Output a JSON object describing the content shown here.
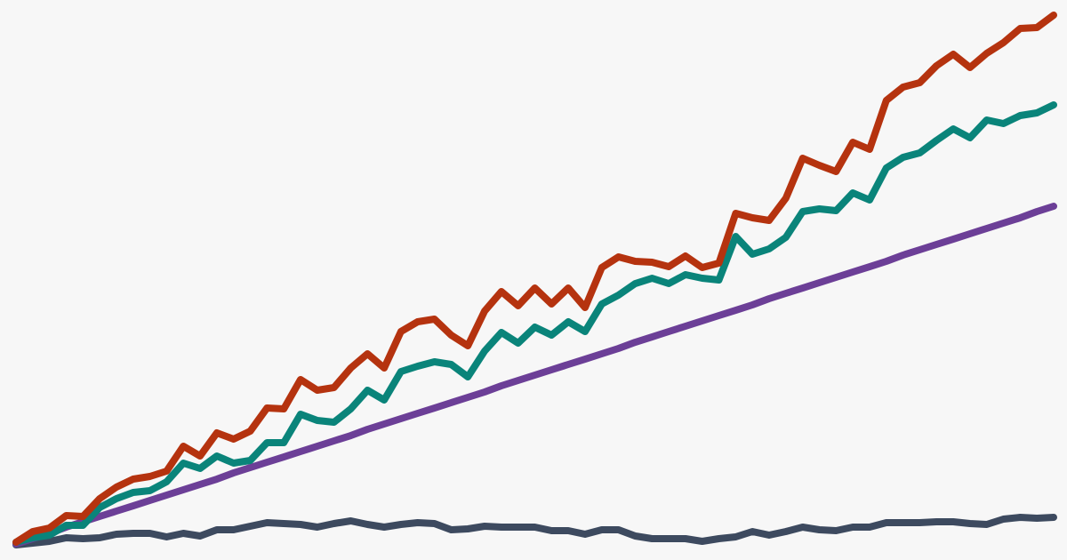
{
  "chart_data": {
    "type": "line",
    "ylim": [
      0,
      630
    ],
    "series": [
      {
        "color": "#3d4a5f",
        "values": [
          17,
          19,
          21,
          25,
          24,
          25,
          29,
          30,
          30,
          26,
          30,
          27,
          34,
          34,
          38,
          42,
          41,
          40,
          37,
          41,
          44,
          40,
          37,
          40,
          42,
          41,
          34,
          35,
          38,
          37,
          37,
          37,
          33,
          33,
          29,
          34,
          34,
          27,
          24,
          24,
          24,
          21,
          24,
          26,
          32,
          28,
          32,
          37,
          34,
          33,
          37,
          37,
          42,
          42,
          42,
          43,
          43,
          41,
          40,
          46,
          48,
          47,
          48
        ]
      },
      {
        "color": "#6c3f97",
        "values": [
          18,
          24,
          30,
          37,
          43,
          49,
          55,
          61,
          67,
          73,
          79,
          85,
          91,
          98,
          104,
          110,
          116,
          122,
          128,
          134,
          140,
          147,
          153,
          159,
          165,
          171,
          177,
          183,
          189,
          196,
          202,
          208,
          214,
          220,
          226,
          232,
          238,
          245,
          251,
          257,
          263,
          269,
          275,
          281,
          287,
          294,
          300,
          306,
          312,
          318,
          324,
          330,
          336,
          343,
          349,
          355,
          361,
          367,
          373,
          379,
          385,
          392,
          398
        ]
      },
      {
        "color": "#0a847a",
        "values": [
          20,
          25,
          28,
          39,
          39,
          59,
          69,
          76,
          78,
          88,
          109,
          103,
          117,
          109,
          112,
          132,
          132,
          164,
          157,
          155,
          170,
          191,
          180,
          212,
          218,
          223,
          220,
          206,
          235,
          256,
          244,
          262,
          253,
          268,
          257,
          288,
          298,
          311,
          317,
          311,
          321,
          317,
          315,
          364,
          344,
          350,
          363,
          392,
          395,
          393,
          413,
          405,
          441,
          453,
          458,
          472,
          485,
          475,
          495,
          491,
          500,
          503,
          512
        ]
      },
      {
        "color": "#b5330f",
        "values": [
          20,
          32,
          36,
          50,
          49,
          69,
          82,
          91,
          94,
          100,
          128,
          117,
          143,
          136,
          145,
          171,
          170,
          203,
          191,
          194,
          216,
          232,
          216,
          257,
          268,
          271,
          253,
          241,
          280,
          302,
          286,
          306,
          288,
          306,
          284,
          329,
          341,
          336,
          335,
          330,
          342,
          329,
          334,
          390,
          385,
          382,
          407,
          452,
          444,
          437,
          470,
          462,
          517,
          532,
          537,
          556,
          569,
          554,
          570,
          582,
          598,
          599,
          613
        ]
      }
    ]
  }
}
